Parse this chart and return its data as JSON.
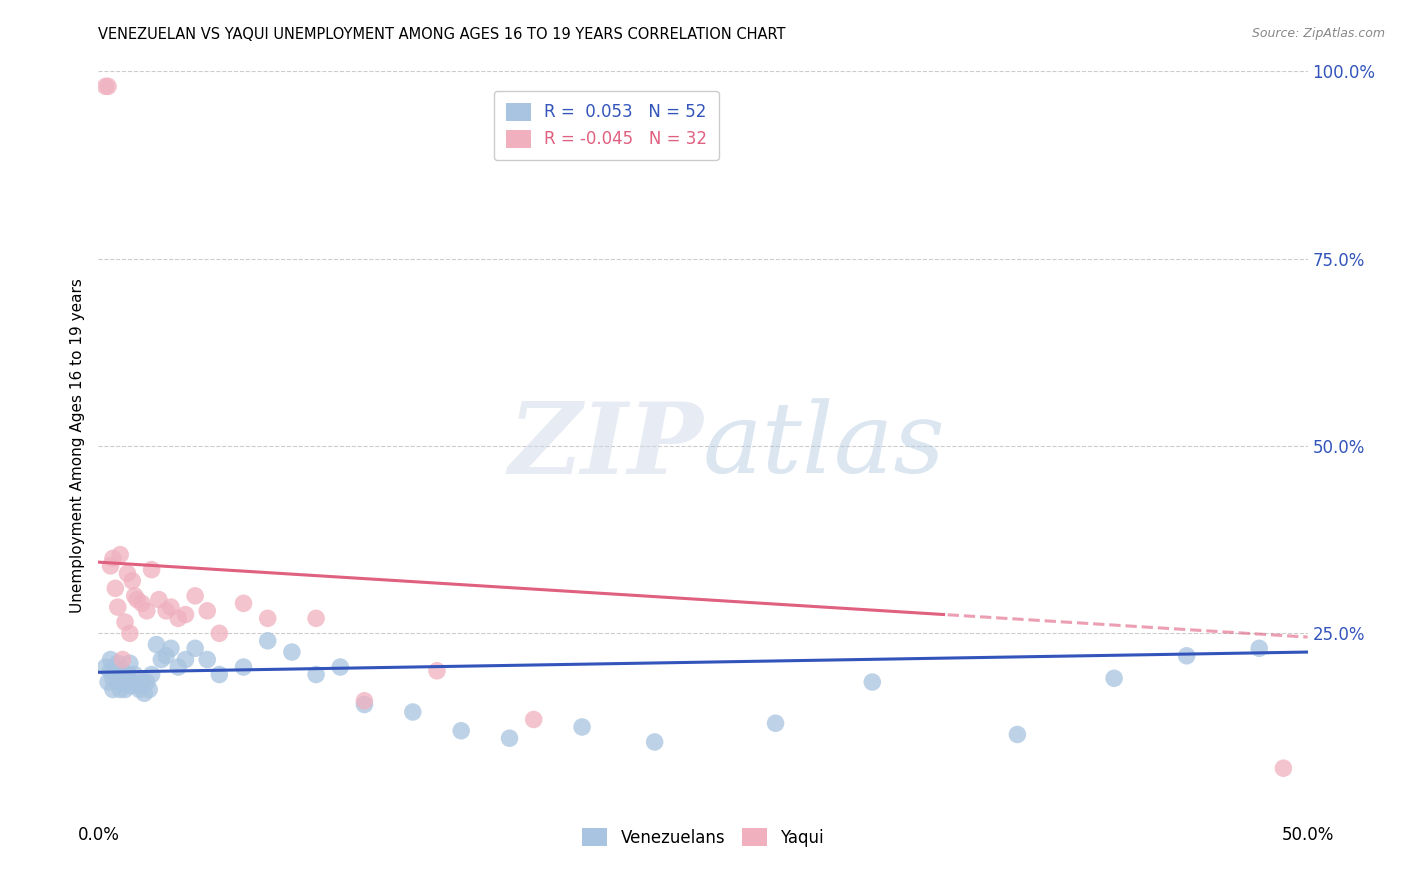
{
  "title": "VENEZUELAN VS YAQUI UNEMPLOYMENT AMONG AGES 16 TO 19 YEARS CORRELATION CHART",
  "source": "Source: ZipAtlas.com",
  "ylabel": "Unemployment Among Ages 16 to 19 years",
  "xlim": [
    0.0,
    0.5
  ],
  "ylim": [
    0.0,
    1.0
  ],
  "xticks": [
    0.0,
    0.1,
    0.2,
    0.3,
    0.4,
    0.5
  ],
  "xtick_labels": [
    "0.0%",
    "",
    "",
    "",
    "",
    "50.0%"
  ],
  "yticks_right": [
    0.0,
    0.25,
    0.5,
    0.75,
    1.0
  ],
  "ytick_labels_right": [
    "",
    "25.0%",
    "50.0%",
    "75.0%",
    "100.0%"
  ],
  "venezuelan_color": "#a8c4e0",
  "yaqui_color": "#f0b0be",
  "trendline_venezuelan_color": "#3355bb",
  "trendline_yaqui_color": "#e06080",
  "venezuelan_x": [
    0.003,
    0.004,
    0.005,
    0.005,
    0.006,
    0.006,
    0.007,
    0.007,
    0.008,
    0.008,
    0.009,
    0.01,
    0.01,
    0.011,
    0.012,
    0.013,
    0.013,
    0.014,
    0.015,
    0.016,
    0.017,
    0.018,
    0.019,
    0.02,
    0.021,
    0.022,
    0.024,
    0.026,
    0.028,
    0.03,
    0.033,
    0.036,
    0.04,
    0.045,
    0.05,
    0.06,
    0.07,
    0.08,
    0.09,
    0.1,
    0.11,
    0.13,
    0.15,
    0.17,
    0.2,
    0.23,
    0.28,
    0.32,
    0.38,
    0.42,
    0.45,
    0.48
  ],
  "venezuelan_y": [
    0.205,
    0.185,
    0.2,
    0.215,
    0.19,
    0.175,
    0.195,
    0.205,
    0.185,
    0.21,
    0.175,
    0.19,
    0.2,
    0.175,
    0.195,
    0.18,
    0.21,
    0.185,
    0.195,
    0.18,
    0.175,
    0.185,
    0.17,
    0.185,
    0.175,
    0.195,
    0.235,
    0.215,
    0.22,
    0.23,
    0.205,
    0.215,
    0.23,
    0.215,
    0.195,
    0.205,
    0.24,
    0.225,
    0.195,
    0.205,
    0.155,
    0.145,
    0.12,
    0.11,
    0.125,
    0.105,
    0.13,
    0.185,
    0.115,
    0.19,
    0.22,
    0.23
  ],
  "yaqui_x": [
    0.003,
    0.004,
    0.005,
    0.006,
    0.007,
    0.008,
    0.009,
    0.01,
    0.011,
    0.012,
    0.013,
    0.014,
    0.015,
    0.016,
    0.018,
    0.02,
    0.022,
    0.025,
    0.028,
    0.03,
    0.033,
    0.036,
    0.04,
    0.045,
    0.05,
    0.06,
    0.07,
    0.09,
    0.11,
    0.14,
    0.18,
    0.49
  ],
  "yaqui_y": [
    0.98,
    0.98,
    0.34,
    0.35,
    0.31,
    0.285,
    0.355,
    0.215,
    0.265,
    0.33,
    0.25,
    0.32,
    0.3,
    0.295,
    0.29,
    0.28,
    0.335,
    0.295,
    0.28,
    0.285,
    0.27,
    0.275,
    0.3,
    0.28,
    0.25,
    0.29,
    0.27,
    0.27,
    0.16,
    0.2,
    0.135,
    0.07
  ],
  "trendline_v_x0": 0.0,
  "trendline_v_y0": 0.198,
  "trendline_v_x1": 0.5,
  "trendline_v_y1": 0.225,
  "trendline_q_x0": 0.0,
  "trendline_q_y0": 0.345,
  "trendline_q_x1": 0.5,
  "trendline_q_y1": 0.245,
  "trendline_q_solid_end": 0.35,
  "watermark_zip": "ZIP",
  "watermark_atlas": "atlas",
  "background_color": "#ffffff",
  "grid_color": "#cccccc"
}
